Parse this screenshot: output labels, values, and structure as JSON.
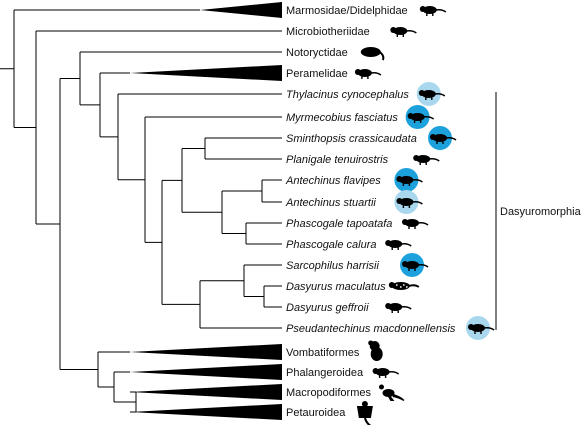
{
  "tips": [
    {
      "id": "marmosidae",
      "label": "Marmosidae/Didelphidae",
      "italic": false,
      "collapsed": true,
      "icon": "opossum-icon",
      "highlight": "none"
    },
    {
      "id": "microbiotheriidae",
      "label": "Microbiotheriidae",
      "italic": false,
      "collapsed": false,
      "icon": "monito-del-monte-icon",
      "highlight": "none"
    },
    {
      "id": "notoryctidae",
      "label": "Notoryctidae",
      "italic": false,
      "collapsed": false,
      "icon": "marsupial-mole-icon",
      "highlight": "none"
    },
    {
      "id": "peramelidae",
      "label": "Peramelidae",
      "italic": false,
      "collapsed": true,
      "icon": "bandicoot-icon",
      "highlight": "none"
    },
    {
      "id": "thylacinus",
      "label": "Thylacinus cynocephalus",
      "italic": true,
      "collapsed": false,
      "icon": "thylacine-icon",
      "highlight": "light"
    },
    {
      "id": "myrmecobius",
      "label": "Myrmecobius fasciatus",
      "italic": true,
      "collapsed": false,
      "icon": "numbat-icon",
      "highlight": "dark"
    },
    {
      "id": "sminthopsis",
      "label": "Sminthopsis crassicaudata",
      "italic": true,
      "collapsed": false,
      "icon": "dunnart-icon",
      "highlight": "dark"
    },
    {
      "id": "planigale",
      "label": "Planigale tenuirostris",
      "italic": true,
      "collapsed": false,
      "icon": "planigale-icon",
      "highlight": "none"
    },
    {
      "id": "antechinus-flavipes",
      "label": "Antechinus flavipes",
      "italic": true,
      "collapsed": false,
      "icon": "antechinus-icon",
      "highlight": "dark"
    },
    {
      "id": "antechinus-stuartii",
      "label": "Antechinus stuartii",
      "italic": true,
      "collapsed": false,
      "icon": "antechinus-icon",
      "highlight": "light"
    },
    {
      "id": "phascogale-tapoatafa",
      "label": "Phascogale tapoatafa",
      "italic": true,
      "collapsed": false,
      "icon": "phascogale-icon",
      "highlight": "none"
    },
    {
      "id": "phascogale-calura",
      "label": "Phascogale calura",
      "italic": true,
      "collapsed": false,
      "icon": "phascogale-icon",
      "highlight": "none"
    },
    {
      "id": "sarcophilus",
      "label": "Sarcophilus harrisii",
      "italic": true,
      "collapsed": false,
      "icon": "tasmanian-devil-icon",
      "highlight": "dark"
    },
    {
      "id": "dasyurus-maculatus",
      "label": "Dasyurus maculatus",
      "italic": true,
      "collapsed": false,
      "icon": "spotted-quoll-icon",
      "highlight": "none"
    },
    {
      "id": "dasyurus-geffroii",
      "label": "Dasyurus geffroii",
      "italic": true,
      "collapsed": false,
      "icon": "quoll-icon",
      "highlight": "none"
    },
    {
      "id": "pseudantechinus",
      "label": "Pseudantechinus macdonnellensis",
      "italic": true,
      "collapsed": false,
      "icon": "pseudantechinus-icon",
      "highlight": "light"
    },
    {
      "id": "vombatiformes",
      "label": "Vombatiformes",
      "italic": false,
      "collapsed": true,
      "icon": "koala-icon",
      "highlight": "none"
    },
    {
      "id": "phalangeroidea",
      "label": "Phalangeroidea",
      "italic": false,
      "collapsed": true,
      "icon": "possum-icon",
      "highlight": "none"
    },
    {
      "id": "macropodiformes",
      "label": "Macropodiformes",
      "italic": false,
      "collapsed": true,
      "icon": "kangaroo-icon",
      "highlight": "none"
    },
    {
      "id": "petauroidea",
      "label": "Petauroidea",
      "italic": false,
      "collapsed": true,
      "icon": "glider-icon",
      "highlight": "none"
    }
  ],
  "clade_bracket": {
    "label": "Dasyuromorphia"
  },
  "colors": {
    "branch": "#000000",
    "highlight_dark": "#1da1dc",
    "highlight_light": "#a9d8ee",
    "silhouette": "#000000"
  }
}
